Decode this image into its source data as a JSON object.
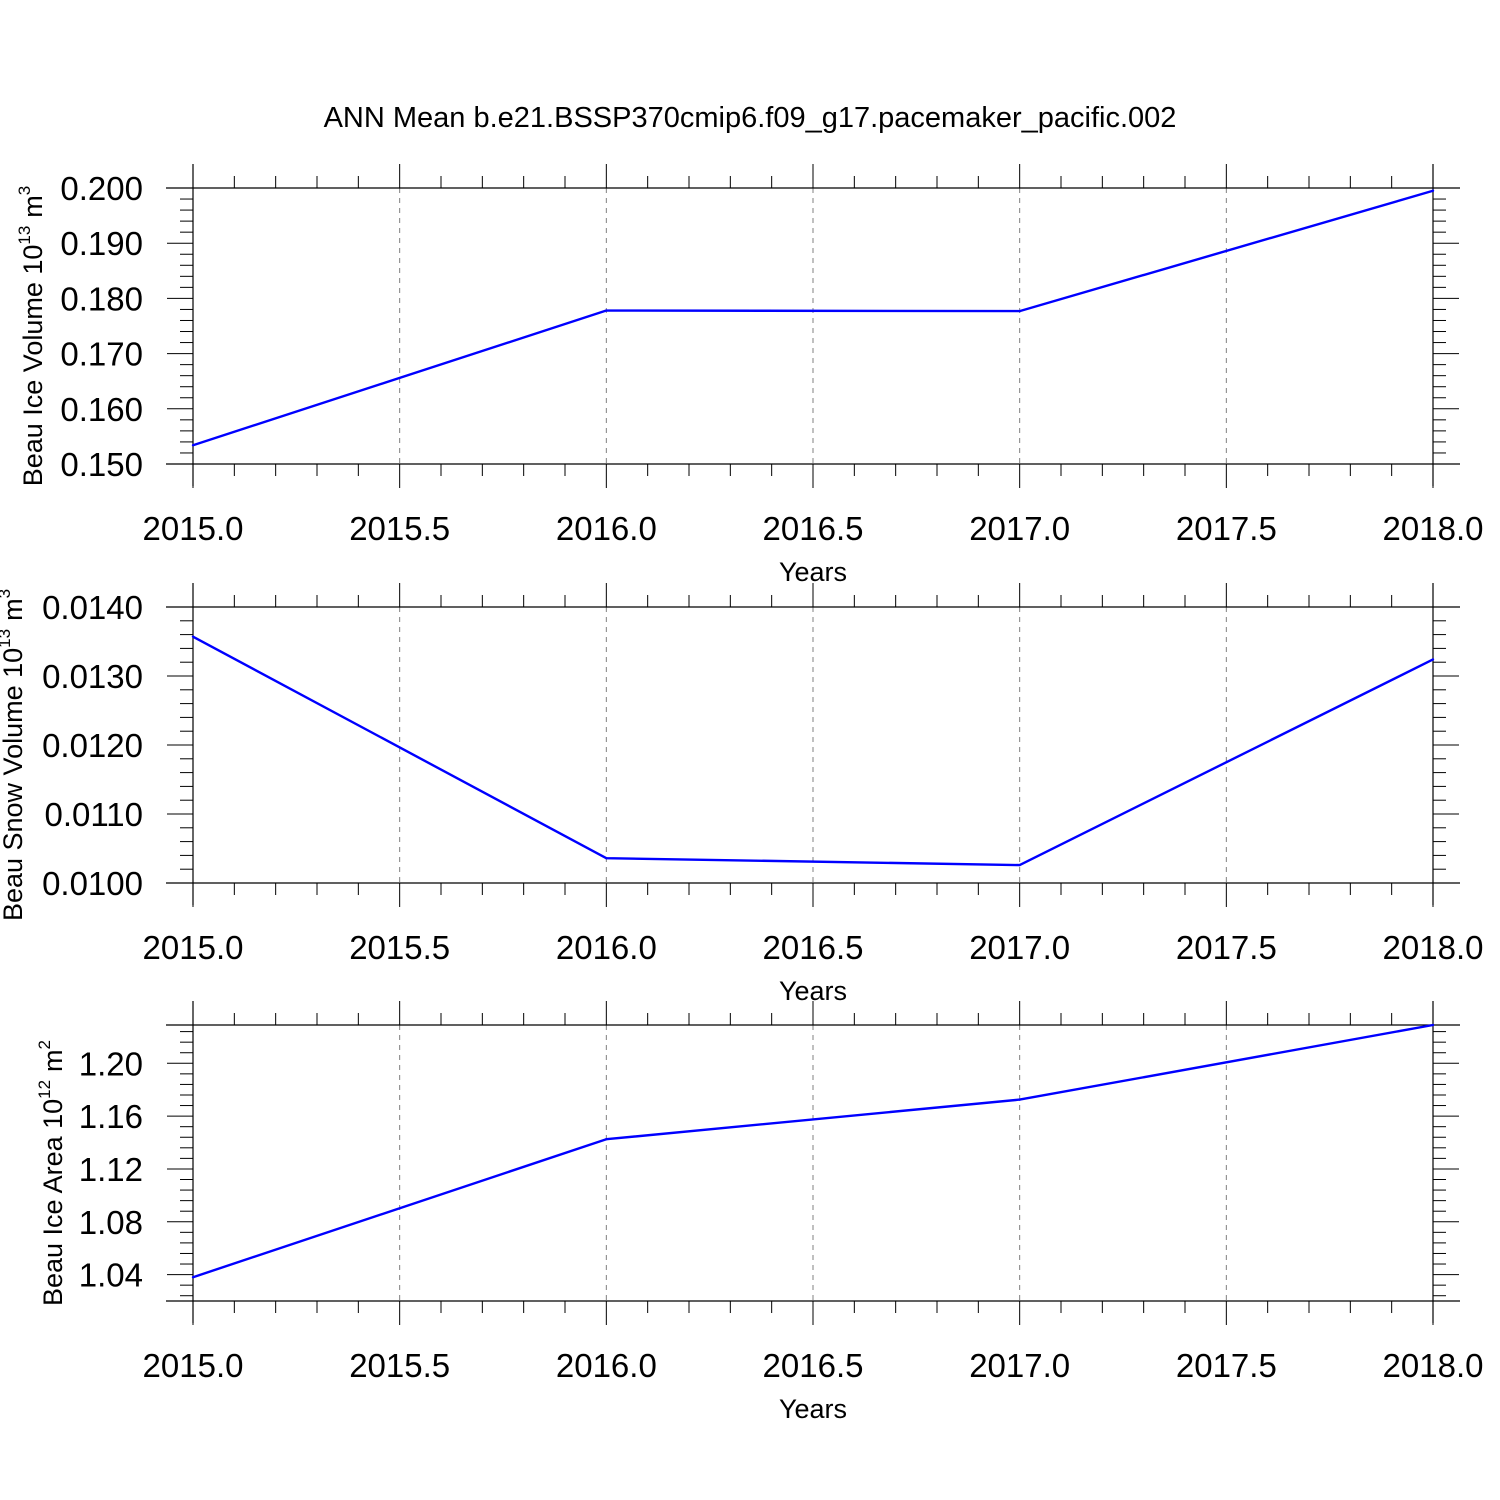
{
  "title": "ANN Mean b.e21.BSSP370cmip6.f09_g17.pacemaker_pacific.002",
  "colors": {
    "series": "#0000ff",
    "axis": "#000000",
    "grid": "#808080"
  },
  "chart_data": [
    {
      "type": "line",
      "ylabel": {
        "text": "Beau Ice Volume 10",
        "exponent": "13",
        "unit": "m",
        "unit_exponent": "3"
      },
      "xlabel": "Years",
      "xlim": [
        2015.0,
        2018.0
      ],
      "ylim": [
        0.15,
        0.2
      ],
      "xticks": [
        2015.0,
        2015.5,
        2016.0,
        2016.5,
        2017.0,
        2017.5,
        2018.0
      ],
      "xtick_labels": [
        "2015.0",
        "2015.5",
        "2016.0",
        "2016.5",
        "2017.0",
        "2017.5",
        "2018.0"
      ],
      "yticks": [
        0.15,
        0.16,
        0.17,
        0.18,
        0.19,
        0.2
      ],
      "ytick_labels": [
        "0.150",
        "0.160",
        "0.170",
        "0.180",
        "0.190",
        "0.200"
      ],
      "x": [
        2015,
        2016,
        2017,
        2018
      ],
      "y": [
        0.1534,
        0.1778,
        0.1777,
        0.1995
      ],
      "grid": "vertical dashed at major x ticks"
    },
    {
      "type": "line",
      "ylabel": {
        "text": "Beau Snow Volume 10",
        "exponent": "13",
        "unit": "m",
        "unit_exponent": "3"
      },
      "xlabel": "Years",
      "xlim": [
        2015.0,
        2018.0
      ],
      "ylim": [
        0.01,
        0.014
      ],
      "xticks": [
        2015.0,
        2015.5,
        2016.0,
        2016.5,
        2017.0,
        2017.5,
        2018.0
      ],
      "xtick_labels": [
        "2015.0",
        "2015.5",
        "2016.0",
        "2016.5",
        "2017.0",
        "2017.5",
        "2018.0"
      ],
      "yticks": [
        0.01,
        0.011,
        0.012,
        0.013,
        0.014
      ],
      "ytick_labels": [
        "0.0100",
        "0.0110",
        "0.0120",
        "0.0130",
        "0.0140"
      ],
      "x": [
        2015,
        2016,
        2017,
        2018
      ],
      "y": [
        0.01357,
        0.01036,
        0.01026,
        0.01324
      ],
      "grid": "vertical dashed at major x ticks"
    },
    {
      "type": "line",
      "ylabel": {
        "text": "Beau Ice Area 10",
        "exponent": "12",
        "unit": "m",
        "unit_exponent": "2"
      },
      "xlabel": "Years",
      "xlim": [
        2015.0,
        2018.0
      ],
      "ylim": [
        1.02,
        1.229
      ],
      "xticks": [
        2015.0,
        2015.5,
        2016.0,
        2016.5,
        2017.0,
        2017.5,
        2018.0
      ],
      "xtick_labels": [
        "2015.0",
        "2015.5",
        "2016.0",
        "2016.5",
        "2017.0",
        "2017.5",
        "2018.0"
      ],
      "yticks": [
        1.04,
        1.08,
        1.12,
        1.16,
        1.2
      ],
      "ytick_labels": [
        "1.04",
        "1.08",
        "1.12",
        "1.16",
        "1.20"
      ],
      "x": [
        2015,
        2016,
        2017,
        2018
      ],
      "y": [
        1.038,
        1.1425,
        1.1725,
        1.229
      ],
      "grid": "vertical dashed at major x ticks"
    }
  ]
}
